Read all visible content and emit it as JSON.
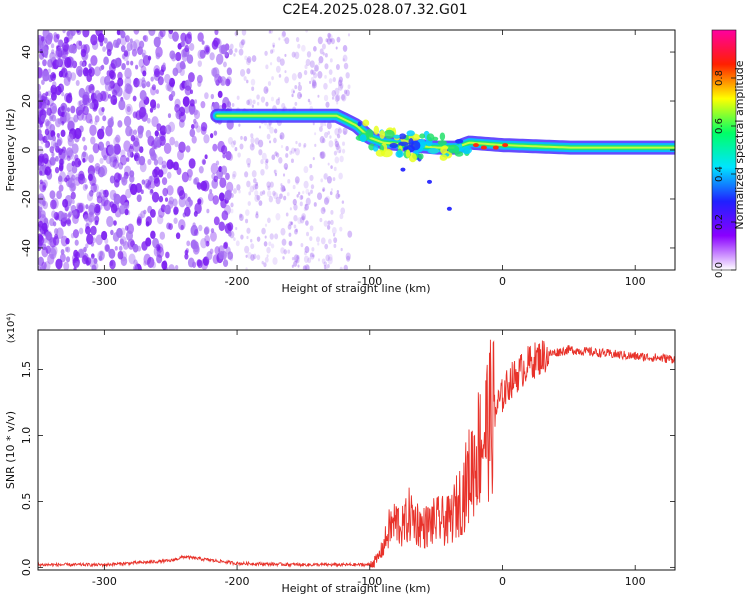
{
  "title": "C2E4.2025.028.07.32.G01",
  "chart_data": [
    {
      "type": "heatmap",
      "xlabel": "Height of straight line (km)",
      "ylabel": "Frequency (Hz)",
      "xlim": [
        -350,
        130
      ],
      "ylim": [
        -49,
        49
      ],
      "xticks": [
        -300,
        -200,
        -100,
        0,
        100
      ],
      "yticks": [
        -40,
        -20,
        0,
        20,
        40
      ],
      "colorbar": {
        "label": "Normalized spectral amplitude",
        "range": [
          0,
          1
        ],
        "ticks": [
          "0.0",
          "0.2",
          "0.4",
          "0.6",
          "0.8"
        ],
        "stops": [
          "#ffffff",
          "#8a00ff",
          "#2020ff",
          "#00e5ff",
          "#00ff66",
          "#ffff00",
          "#ff2000",
          "#ff00a0"
        ]
      },
      "features": [
        {
          "name": "noise",
          "x_range": [
            -350,
            -115
          ],
          "freq_range": [
            -49,
            49
          ],
          "amplitude": 0.15
        },
        {
          "name": "carrier",
          "points": [
            [
              -215,
              14
            ],
            [
              -180,
              14
            ],
            [
              -150,
              14
            ],
            [
              -125,
              14
            ],
            [
              -110,
              10
            ],
            [
              -100,
              5
            ],
            [
              -90,
              3
            ],
            [
              -70,
              2
            ],
            [
              -50,
              1
            ],
            [
              -35,
              1
            ],
            [
              -25,
              3
            ],
            [
              0,
              2
            ],
            [
              50,
              1
            ],
            [
              100,
              1
            ],
            [
              130,
              1
            ]
          ],
          "amplitude": 0.5
        }
      ]
    },
    {
      "type": "line",
      "xlabel": "Height of straight line (km)",
      "ylabel": "SNR (10 * v/v)",
      "scale_label": "(x10⁴)",
      "xlim": [
        -350,
        130
      ],
      "ylim": [
        -0.02,
        1.8
      ],
      "xticks": [
        -300,
        -200,
        -100,
        0,
        100
      ],
      "yticks": [
        "0.0",
        "0.5",
        "1.0",
        "1.5"
      ],
      "series_color": "#e8322a",
      "x": [
        -350,
        -300,
        -250,
        -240,
        -200,
        -150,
        -100,
        -95,
        -90,
        -85,
        -80,
        -75,
        -70,
        -60,
        -50,
        -40,
        -30,
        -25,
        -20,
        -15,
        -10,
        -5,
        0,
        5,
        10,
        20,
        30,
        40,
        50,
        70,
        100,
        130
      ],
      "values": [
        0.02,
        0.02,
        0.05,
        0.08,
        0.03,
        0.02,
        0.02,
        0.05,
        0.15,
        0.3,
        0.35,
        0.3,
        0.4,
        0.3,
        0.35,
        0.35,
        0.55,
        0.7,
        0.85,
        1.0,
        1.1,
        1.2,
        1.3,
        1.4,
        1.45,
        1.55,
        1.6,
        1.63,
        1.65,
        1.63,
        1.6,
        1.58
      ]
    }
  ]
}
